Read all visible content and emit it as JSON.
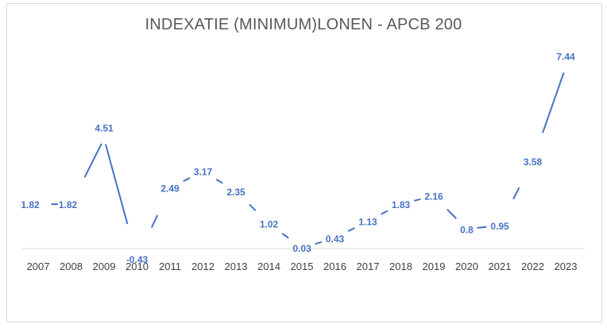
{
  "chart_data": {
    "type": "line",
    "title": "INDEXATIE (MINIMUM)LONEN - APCB 200",
    "xlabel": "",
    "ylabel": "",
    "categories": [
      "2007",
      "2008",
      "2009",
      "2010",
      "2011",
      "2012",
      "2013",
      "2014",
      "2015",
      "2016",
      "2017",
      "2018",
      "2019",
      "2020",
      "2021",
      "2022",
      "2023"
    ],
    "series": [
      {
        "values": [
          1.82,
          1.82,
          4.51,
          -0.43,
          2.49,
          3.17,
          2.35,
          1.02,
          0.03,
          0.43,
          1.13,
          1.83,
          2.16,
          0.8,
          0.95,
          3.58,
          7.44
        ],
        "labels": [
          "1.82",
          "1.82",
          "4.51",
          "-0.43",
          "2.49",
          "3.17",
          "2.35",
          "1.02",
          "0.03",
          "0.43",
          "1.13",
          "1.83",
          "2.16",
          "0.8",
          "0.95",
          "3.58",
          "7.44"
        ],
        "color": "#4472C4"
      }
    ],
    "ylim": [
      -0.5,
      8
    ],
    "grid": false,
    "legend": "none",
    "axis_color": "#d9d9d9"
  }
}
